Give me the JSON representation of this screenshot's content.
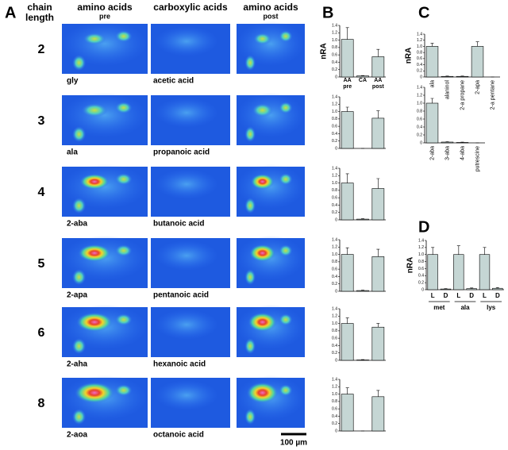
{
  "panel_a": {
    "label": "A",
    "row_header_lines": [
      "chain",
      "length"
    ],
    "columns": [
      {
        "title": "amino acids",
        "subtitle": "pre"
      },
      {
        "title": "carboxylic acids"
      },
      {
        "title": "amino acids",
        "subtitle": "post"
      }
    ],
    "rows": [
      {
        "chain_length": "2",
        "amino_acid": "gly",
        "carboxylic_acid": "acetic acid"
      },
      {
        "chain_length": "3",
        "amino_acid": "ala",
        "carboxylic_acid": "propanoic acid"
      },
      {
        "chain_length": "4",
        "amino_acid": "2-aba",
        "carboxylic_acid": "butanoic acid"
      },
      {
        "chain_length": "5",
        "amino_acid": "2-apa",
        "carboxylic_acid": "pentanoic acid"
      },
      {
        "chain_length": "6",
        "amino_acid": "2-aha",
        "carboxylic_acid": "hexanoic acid"
      },
      {
        "chain_length": "8",
        "amino_acid": "2-aoa",
        "carboxylic_acid": "octanoic acid"
      }
    ],
    "scale_bar": "100 µm"
  },
  "panel_b": {
    "label": "B",
    "ylabel": "nRA",
    "categories": [
      "AA pre",
      "CA",
      "AA post"
    ],
    "ylim": [
      0,
      1.4
    ],
    "yticks": [
      0,
      0.2,
      0.4,
      0.6,
      0.8,
      {
        "value": 1,
        "label": "1.0"
      },
      1.2,
      1.4
    ],
    "charts": [
      {
        "values": [
          1.02,
          0.03,
          0.55
        ],
        "errors": [
          0.32,
          0.01,
          0.2
        ]
      },
      {
        "values": [
          1.0,
          0.0,
          0.82
        ],
        "errors": [
          0.12,
          0.0,
          0.2
        ]
      },
      {
        "values": [
          1.0,
          0.02,
          0.85
        ],
        "errors": [
          0.25,
          0.01,
          0.27
        ]
      },
      {
        "values": [
          1.0,
          0.02,
          0.94
        ],
        "errors": [
          0.18,
          0.01,
          0.2
        ]
      },
      {
        "values": [
          1.0,
          0.01,
          0.9
        ],
        "errors": [
          0.15,
          0.01,
          0.1
        ]
      },
      {
        "values": [
          1.0,
          0.0,
          0.93
        ],
        "errors": [
          0.17,
          0.0,
          0.17
        ]
      }
    ]
  },
  "panel_c": {
    "label": "C",
    "ylabel": "nRA",
    "ylim": [
      0,
      1.4
    ],
    "yticks": [
      0,
      0.2,
      0.4,
      0.6,
      0.8,
      {
        "value": 1,
        "label": "1.0"
      },
      1.2,
      1.4
    ],
    "charts": [
      {
        "categories": [
          "ala",
          "alaninol",
          "2-a propane",
          "2-apa",
          "2-a pentane"
        ],
        "values": [
          1.0,
          0.02,
          0.02,
          1.0,
          0.0
        ],
        "errors": [
          0.1,
          0.01,
          0.01,
          0.15,
          0.0
        ]
      },
      {
        "categories": [
          "2-aba",
          "3-aba",
          "4-aba",
          "putrescine"
        ],
        "values": [
          1.0,
          0.02,
          0.01,
          0.0
        ],
        "errors": [
          0.12,
          0.01,
          0.01,
          0.0
        ]
      }
    ]
  },
  "panel_d": {
    "label": "D",
    "ylabel": "nRA",
    "ylim": [
      0,
      1.4
    ],
    "yticks": [
      0,
      0.2,
      0.4,
      0.6,
      0.8,
      {
        "value": 1,
        "label": "1.0"
      },
      1.2,
      1.4
    ],
    "categories": [
      "L",
      "D",
      "L",
      "D",
      "L",
      "D"
    ],
    "groups": [
      "met",
      "ala",
      "lys"
    ],
    "values": [
      1.0,
      0.02,
      1.0,
      0.03,
      1.0,
      0.04
    ],
    "errors": [
      0.2,
      0.01,
      0.25,
      0.02,
      0.2,
      0.02
    ]
  }
}
